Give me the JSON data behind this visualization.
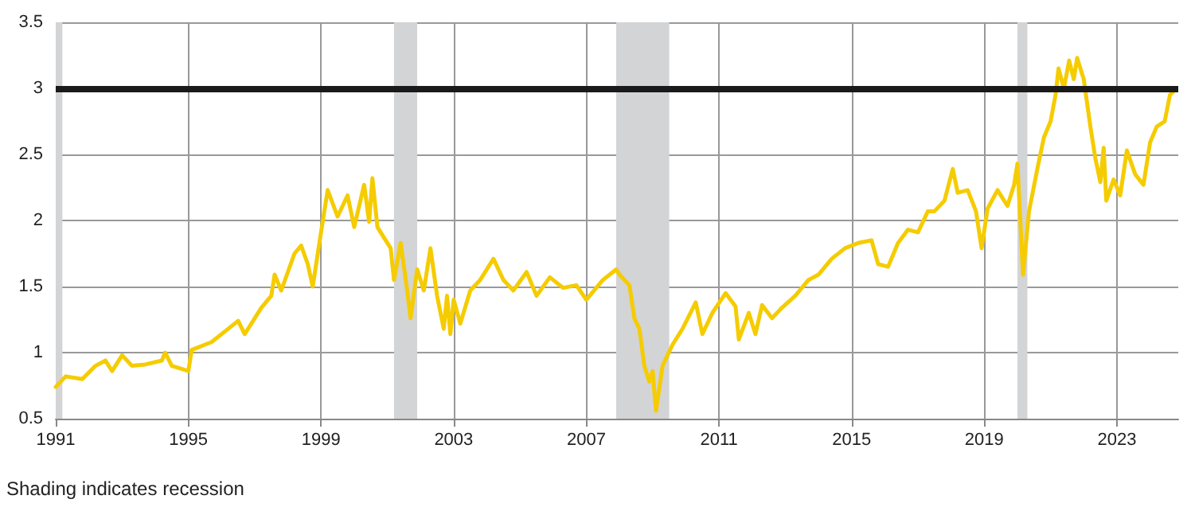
{
  "chart_data": {
    "type": "line",
    "x": [
      1991.0,
      1991.3,
      1991.8,
      1992.2,
      1992.5,
      1992.7,
      1993.0,
      1993.3,
      1993.7,
      1994.2,
      1994.3,
      1994.5,
      1995.0,
      1995.1,
      1995.7,
      1996.2,
      1996.5,
      1996.7,
      1997.2,
      1997.5,
      1997.6,
      1997.8,
      1998.2,
      1998.4,
      1998.6,
      1998.75,
      1999.0,
      1999.2,
      1999.5,
      1999.8,
      2000.0,
      2000.3,
      2000.45,
      2000.55,
      2000.7,
      2000.9,
      2001.1,
      2001.2,
      2001.4,
      2001.6,
      2001.7,
      2001.9,
      2002.1,
      2002.3,
      2002.5,
      2002.7,
      2002.8,
      2002.9,
      2003.0,
      2003.2,
      2003.5,
      2003.8,
      2004.0,
      2004.2,
      2004.5,
      2004.8,
      2005.2,
      2005.5,
      2005.9,
      2006.3,
      2006.7,
      2007.0,
      2007.5,
      2007.9,
      2008.0,
      2008.3,
      2008.45,
      2008.6,
      2008.75,
      2008.9,
      2009.0,
      2009.1,
      2009.3,
      2009.6,
      2009.9,
      2010.3,
      2010.5,
      2010.8,
      2011.2,
      2011.5,
      2011.6,
      2011.9,
      2012.1,
      2012.3,
      2012.6,
      2012.9,
      2013.3,
      2013.7,
      2014.0,
      2014.4,
      2014.8,
      2015.2,
      2015.6,
      2015.8,
      2016.1,
      2016.4,
      2016.7,
      2017.0,
      2017.3,
      2017.5,
      2017.8,
      2018.05,
      2018.2,
      2018.5,
      2018.75,
      2018.92,
      2019.1,
      2019.4,
      2019.7,
      2019.9,
      2020.0,
      2020.17,
      2020.35,
      2020.6,
      2020.8,
      2021.0,
      2021.15,
      2021.24,
      2021.4,
      2021.56,
      2021.7,
      2021.8,
      2022.0,
      2022.2,
      2022.35,
      2022.5,
      2022.6,
      2022.68,
      2022.9,
      2023.1,
      2023.3,
      2023.55,
      2023.8,
      2024.0,
      2024.2,
      2024.44,
      2024.6,
      2024.75
    ],
    "series": [
      {
        "color": "#f5cc00",
        "values": [
          0.74,
          0.82,
          0.8,
          0.9,
          0.94,
          0.86,
          0.98,
          0.9,
          0.91,
          0.94,
          1.0,
          0.9,
          0.86,
          1.02,
          1.08,
          1.18,
          1.24,
          1.14,
          1.34,
          1.43,
          1.59,
          1.47,
          1.75,
          1.81,
          1.67,
          1.5,
          1.91,
          2.23,
          2.03,
          2.19,
          1.95,
          2.27,
          1.99,
          2.32,
          1.95,
          1.87,
          1.79,
          1.55,
          1.83,
          1.47,
          1.26,
          1.63,
          1.47,
          1.79,
          1.43,
          1.18,
          1.43,
          1.14,
          1.4,
          1.22,
          1.47,
          1.55,
          1.63,
          1.71,
          1.55,
          1.47,
          1.61,
          1.43,
          1.57,
          1.49,
          1.51,
          1.4,
          1.55,
          1.63,
          1.59,
          1.51,
          1.26,
          1.18,
          0.9,
          0.78,
          0.86,
          0.56,
          0.9,
          1.06,
          1.18,
          1.38,
          1.14,
          1.3,
          1.45,
          1.35,
          1.1,
          1.3,
          1.14,
          1.36,
          1.26,
          1.34,
          1.43,
          1.55,
          1.59,
          1.71,
          1.79,
          1.83,
          1.85,
          1.67,
          1.65,
          1.83,
          1.93,
          1.91,
          2.07,
          2.07,
          2.15,
          2.39,
          2.21,
          2.23,
          2.07,
          1.79,
          2.09,
          2.23,
          2.11,
          2.27,
          2.43,
          1.59,
          2.07,
          2.39,
          2.63,
          2.75,
          2.95,
          3.15,
          3.0,
          3.21,
          3.07,
          3.23,
          3.07,
          2.71,
          2.47,
          2.29,
          2.55,
          2.15,
          2.31,
          2.19,
          2.53,
          2.35,
          2.27,
          2.59,
          2.71,
          2.75,
          2.95,
          2.99
        ]
      }
    ],
    "xlim": [
      1991,
      2024.85
    ],
    "xticks": [
      1991,
      1995,
      1999,
      2003,
      2007,
      2011,
      2015,
      2019,
      2023
    ],
    "ylim": [
      0.5,
      3.5
    ],
    "yticks": [
      0.5,
      1,
      1.5,
      2,
      2.5,
      3,
      3.5
    ],
    "grid": true,
    "marker": "none",
    "line_style": "solid",
    "ref_lines": [
      {
        "axis": "y",
        "value": 3,
        "color": "#1a1a1a"
      }
    ],
    "bands": [
      {
        "axis": "x",
        "from": 1991.0,
        "to": 1991.2,
        "color": "#d3d4d6"
      },
      {
        "axis": "x",
        "from": 2001.2,
        "to": 2001.9,
        "color": "#d3d4d6"
      },
      {
        "axis": "x",
        "from": 2007.9,
        "to": 2009.5,
        "color": "#d3d4d6"
      },
      {
        "axis": "x",
        "from": 2020.0,
        "to": 2020.3,
        "color": "#d3d4d6"
      }
    ],
    "annotations": [
      "Shading indicates recession"
    ]
  }
}
